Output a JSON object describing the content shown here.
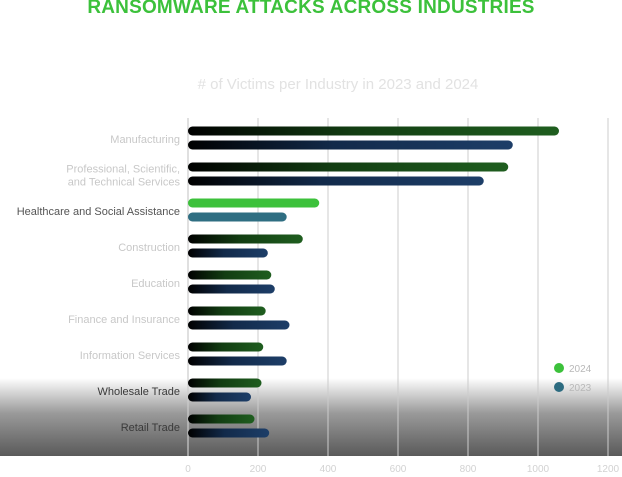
{
  "page": {
    "title": "RANSOMWARE ATTACKS ACROSS INDUSTRIES"
  },
  "colors": {
    "title": "#3cc13b",
    "series_2024": "#3cc13b",
    "series_2023": "#2c6b80",
    "bar_2024_gradient": [
      "#000000",
      "#1e5c1e"
    ],
    "bar_2023_gradient": [
      "#000000",
      "#1c3d66"
    ],
    "highlight_2024": "#3cc13b",
    "highlight_2023": "#2f6e82",
    "grid": "#cccccc"
  },
  "chart_data": {
    "type": "bar",
    "orientation": "horizontal",
    "title": "# of Victims per Industry in 2023 and 2024",
    "categories": [
      "Manufacturing",
      "Professional, Scientific, and Technical Services",
      "Healthcare and Social Assistance",
      "Construction",
      "Education",
      "Finance and Insurance",
      "Information Services",
      "Wholesale Trade",
      "Retail Trade"
    ],
    "category_lines": [
      [
        "Manufacturing"
      ],
      [
        "Professional, Scientific,",
        "and Technical Services"
      ],
      [
        "Healthcare and Social Assistance"
      ],
      [
        "Construction"
      ],
      [
        "Education"
      ],
      [
        "Finance and Insurance"
      ],
      [
        "Information Services"
      ],
      [
        "Wholesale Trade"
      ],
      [
        "Retail Trade"
      ]
    ],
    "series": [
      {
        "name": "2024",
        "values": [
          1060,
          915,
          375,
          328,
          238,
          222,
          215,
          210,
          190
        ]
      },
      {
        "name": "2023",
        "values": [
          928,
          845,
          282,
          228,
          248,
          290,
          282,
          180,
          232
        ]
      }
    ],
    "highlight_category": "Healthcare and Social Assistance",
    "xlim": [
      0,
      1200
    ],
    "xticks": [
      0,
      200,
      400,
      600,
      800,
      1000,
      1200
    ],
    "xlabel": "",
    "ylabel": "",
    "grid": "vertical",
    "legend_position": "right"
  }
}
